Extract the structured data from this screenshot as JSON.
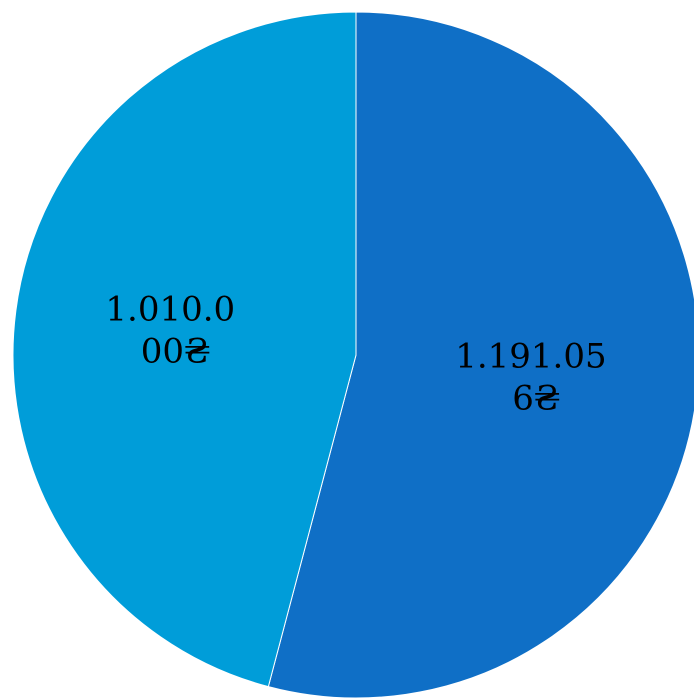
{
  "chart_data": {
    "type": "pie",
    "title": "",
    "start_angle_deg": 0,
    "direction": "clockwise",
    "slices": [
      {
        "value": 1191056,
        "label_lines": [
          "1.191.05",
          "6₴"
        ],
        "color": "#0f6fc6"
      },
      {
        "value": 1010000,
        "label_lines": [
          "1.010.0",
          "00₴"
        ],
        "color": "#009dd9"
      }
    ],
    "legend": false
  }
}
